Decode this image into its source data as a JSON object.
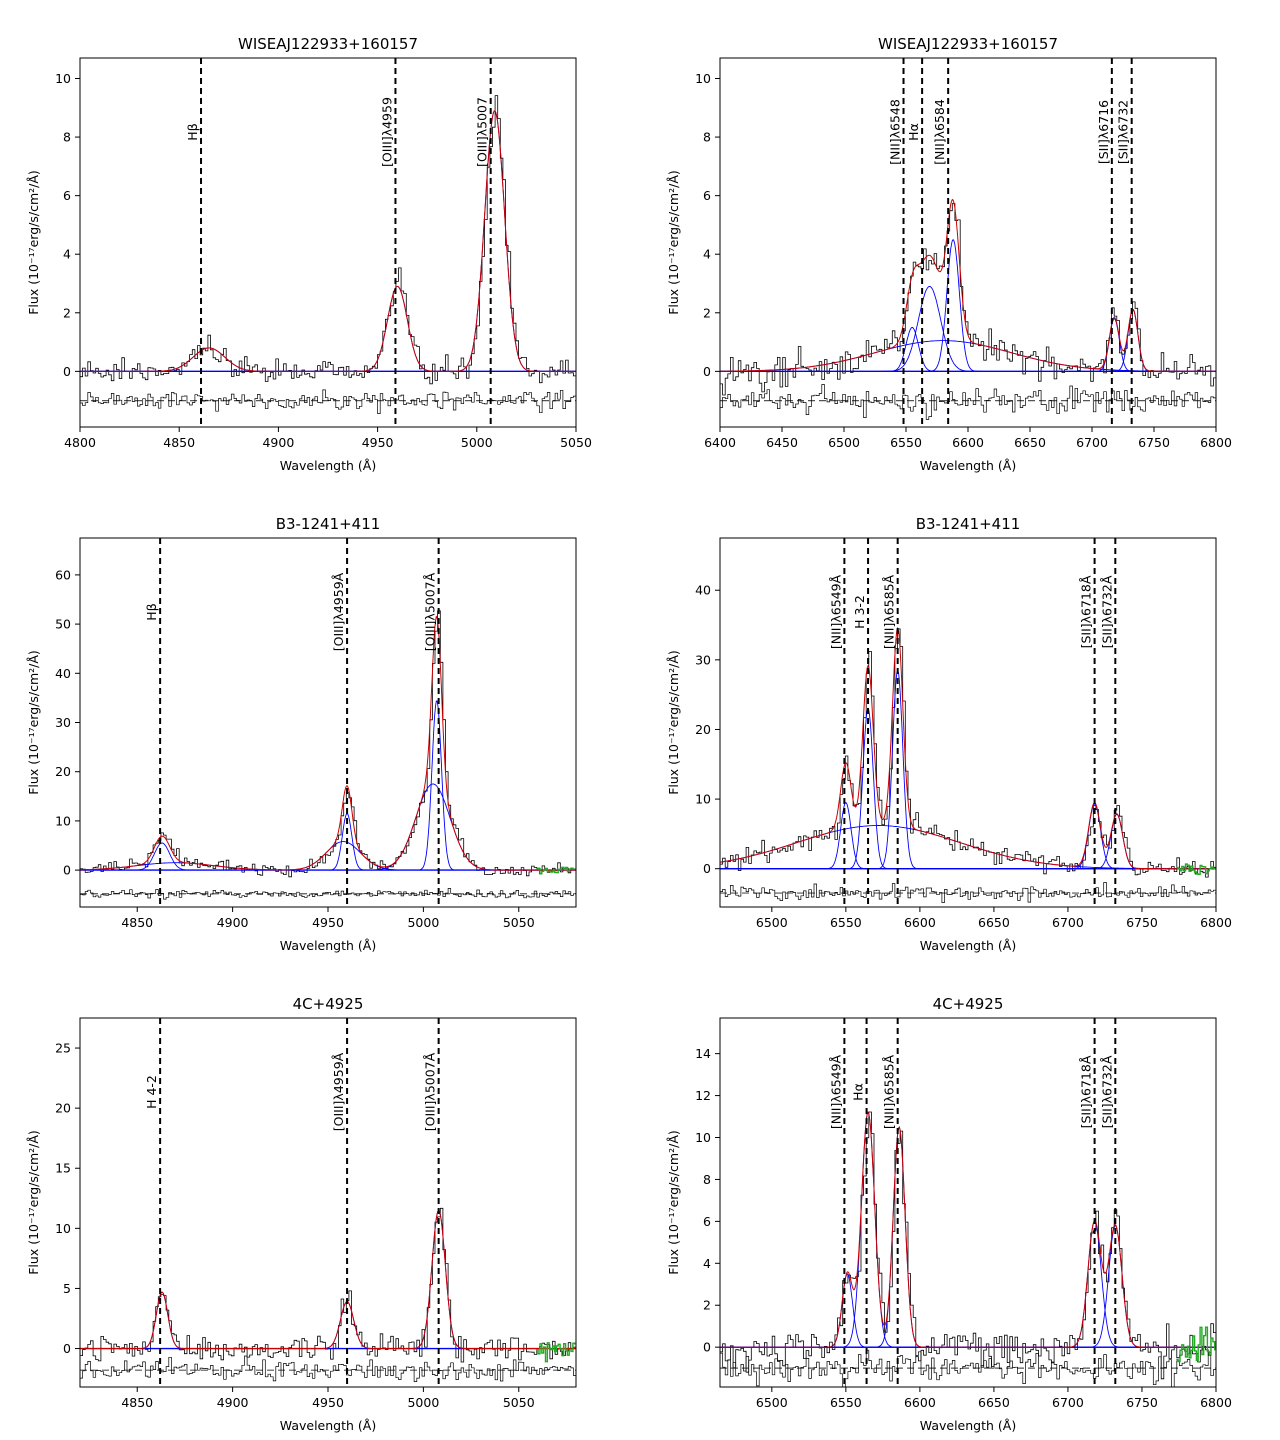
{
  "figure": {
    "xlabel": "Wavelength (Å)",
    "ylabel": "Flux (10⁻¹⁷erg/s/cm²/Å)"
  },
  "chart_data": [
    {
      "type": "line",
      "title": "WISEAJ122933+160157",
      "xlabel": "Wavelength (Å)",
      "ylabel": "Flux (10⁻¹⁷erg/s/cm²/Å)",
      "xlim": [
        4800,
        5050
      ],
      "ylim": [
        -1.9,
        10.7
      ],
      "xticks": [
        4800,
        4850,
        4900,
        4950,
        5000,
        5050
      ],
      "yticks": [
        0,
        2,
        4,
        6,
        8,
        10
      ],
      "lines": [
        {
          "wave": 4861,
          "label": "Hβ"
        },
        {
          "wave": 4959,
          "label": "[OIII]λ4959"
        },
        {
          "wave": 5007,
          "label": "[OIII]λ5007"
        }
      ],
      "components": [
        {
          "center": 4865,
          "amp": 0.8,
          "sigma": 8
        },
        {
          "center": 4960,
          "amp": 2.9,
          "sigma": 5
        },
        {
          "center": 5009,
          "amp": 8.9,
          "sigma": 5
        }
      ],
      "residual_offset": -1.0,
      "noise": 0.35
    },
    {
      "type": "line",
      "title": "WISEAJ122933+160157",
      "xlabel": "Wavelength (Å)",
      "ylabel": "Flux (10⁻¹⁷erg/s/cm²/Å)",
      "xlim": [
        6400,
        6800
      ],
      "ylim": [
        -1.9,
        10.7
      ],
      "xticks": [
        6400,
        6450,
        6500,
        6550,
        6600,
        6650,
        6700,
        6750,
        6800
      ],
      "yticks": [
        0,
        2,
        4,
        6,
        8,
        10
      ],
      "lines": [
        {
          "wave": 6548,
          "label": "[NII]λ6548"
        },
        {
          "wave": 6563,
          "label": "Hα"
        },
        {
          "wave": 6584,
          "label": "[NII]λ6584"
        },
        {
          "wave": 6716,
          "label": "[SII]λ6716"
        },
        {
          "wave": 6732,
          "label": "[SII]λ6732"
        }
      ],
      "components": [
        {
          "center": 6555,
          "amp": 1.5,
          "sigma": 5
        },
        {
          "center": 6569,
          "amp": 2.9,
          "sigma": 9
        },
        {
          "center": 6588,
          "amp": 4.5,
          "sigma": 5
        },
        {
          "center": 6580,
          "amp": 1.05,
          "sigma": 55
        },
        {
          "center": 6718,
          "amp": 1.8,
          "sigma": 4
        },
        {
          "center": 6733,
          "amp": 2.1,
          "sigma": 4
        }
      ],
      "residual_offset": -1.0,
      "noise": 0.45
    },
    {
      "type": "line",
      "title": "B3-1241+411",
      "xlabel": "Wavelength (Å)",
      "ylabel": "Flux (10⁻¹⁷erg/s/cm²/Å)",
      "xlim": [
        4820,
        5080
      ],
      "ylim": [
        -7.5,
        67.5
      ],
      "xticks": [
        4850,
        4900,
        4950,
        5000,
        5050
      ],
      "yticks": [
        0,
        10,
        20,
        30,
        40,
        50,
        60
      ],
      "lines": [
        {
          "wave": 4862,
          "label": "Hβ"
        },
        {
          "wave": 4960,
          "label": "[OIII]λ4959Å"
        },
        {
          "wave": 5008,
          "label": "[OIII]λ5007Å"
        }
      ],
      "components": [
        {
          "center": 4863,
          "amp": 5.5,
          "sigma": 4
        },
        {
          "center": 4870,
          "amp": 1.5,
          "sigma": 20
        },
        {
          "center": 4960,
          "amp": 11.5,
          "sigma": 2.5
        },
        {
          "center": 4958,
          "amp": 5.8,
          "sigma": 9
        },
        {
          "center": 5007,
          "amp": 34.5,
          "sigma": 2.5
        },
        {
          "center": 5005,
          "amp": 17.5,
          "sigma": 9
        }
      ],
      "residual_offset": -4.8,
      "noise": 0.9
    },
    {
      "type": "line",
      "title": "B3-1241+411",
      "xlabel": "Wavelength (Å)",
      "ylabel": "Flux (10⁻¹⁷erg/s/cm²/Å)",
      "xlim": [
        6465,
        6800
      ],
      "ylim": [
        -5.5,
        47.5
      ],
      "xticks": [
        6500,
        6550,
        6600,
        6650,
        6700,
        6750,
        6800
      ],
      "yticks": [
        0,
        10,
        20,
        30,
        40
      ],
      "lines": [
        {
          "wave": 6549,
          "label": "[NII]λ6549Å"
        },
        {
          "wave": 6565,
          "label": "H 3-2"
        },
        {
          "wave": 6585,
          "label": "[NII]λ6585Å"
        },
        {
          "wave": 6718,
          "label": "[SII]λ6718Å"
        },
        {
          "wave": 6732,
          "label": "[SII]λ6732Å"
        }
      ],
      "components": [
        {
          "center": 6550,
          "amp": 9.5,
          "sigma": 3.5
        },
        {
          "center": 6565,
          "amp": 23,
          "sigma": 3.5
        },
        {
          "center": 6585,
          "amp": 28.5,
          "sigma": 3.5
        },
        {
          "center": 6572,
          "amp": 6.2,
          "sigma": 55
        },
        {
          "center": 6718,
          "amp": 9.3,
          "sigma": 4
        },
        {
          "center": 6733,
          "amp": 7.8,
          "sigma": 4
        }
      ],
      "residual_offset": -3.5,
      "noise": 1.1
    },
    {
      "type": "line",
      "title": "4C+4925",
      "xlabel": "Wavelength (Å)",
      "ylabel": "Flux (10⁻¹⁷erg/s/cm²/Å)",
      "xlim": [
        4820,
        5080
      ],
      "ylim": [
        -3.2,
        27.5
      ],
      "xticks": [
        4850,
        4900,
        4950,
        5000,
        5050
      ],
      "yticks": [
        0,
        5,
        10,
        15,
        20,
        25
      ],
      "lines": [
        {
          "wave": 4862,
          "label": "H 4-2"
        },
        {
          "wave": 4960,
          "label": "[OIII]λ4959Å"
        },
        {
          "wave": 5008,
          "label": "[OIII]λ5007Å"
        }
      ],
      "components": [
        {
          "center": 4863,
          "amp": 4.7,
          "sigma": 3
        },
        {
          "center": 4960,
          "amp": 3.9,
          "sigma": 3.5
        },
        {
          "center": 5008,
          "amp": 11.5,
          "sigma": 3.5
        }
      ],
      "residual_offset": -1.8,
      "noise": 0.9
    },
    {
      "type": "line",
      "title": "4C+4925",
      "xlabel": "Wavelength (Å)",
      "ylabel": "Flux (10⁻¹⁷erg/s/cm²/Å)",
      "xlim": [
        6465,
        6800
      ],
      "ylim": [
        -1.9,
        15.7
      ],
      "xticks": [
        6500,
        6550,
        6600,
        6650,
        6700,
        6750,
        6800
      ],
      "yticks": [
        0,
        2,
        4,
        6,
        8,
        10,
        12,
        14
      ],
      "lines": [
        {
          "wave": 6549,
          "label": "[NII]λ6549Å"
        },
        {
          "wave": 6564,
          "label": "Hα"
        },
        {
          "wave": 6585,
          "label": "[NII]λ6585Å"
        },
        {
          "wave": 6718,
          "label": "[SII]λ6718Å"
        },
        {
          "wave": 6732,
          "label": "[SII]λ6732Å"
        }
      ],
      "components": [
        {
          "center": 6551,
          "amp": 3.5,
          "sigma": 3.5
        },
        {
          "center": 6565,
          "amp": 11.2,
          "sigma": 4.5
        },
        {
          "center": 6586,
          "amp": 10.5,
          "sigma": 4
        },
        {
          "center": 6718,
          "amp": 6.0,
          "sigma": 4.5
        },
        {
          "center": 6732,
          "amp": 5.8,
          "sigma": 4.5
        }
      ],
      "residual_offset": -1.0,
      "noise": 0.8
    }
  ]
}
